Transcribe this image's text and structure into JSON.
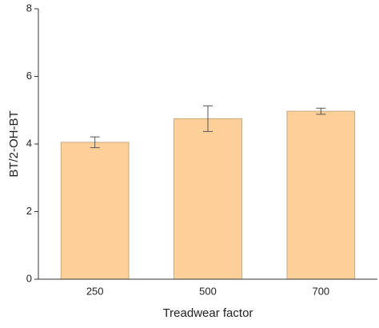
{
  "chart_data": {
    "type": "bar",
    "x_label": "Treadwear factor",
    "y_label": "BT/2-OH-BT",
    "categories": [
      "250",
      "500",
      "700"
    ],
    "values": [
      4.05,
      4.75,
      4.97
    ],
    "errors": [
      0.16,
      0.38,
      0.09
    ],
    "color": "#fdd09a",
    "ylim": [
      0,
      8
    ],
    "yticks": [
      0,
      2,
      4,
      6,
      8
    ],
    "grid": false
  }
}
